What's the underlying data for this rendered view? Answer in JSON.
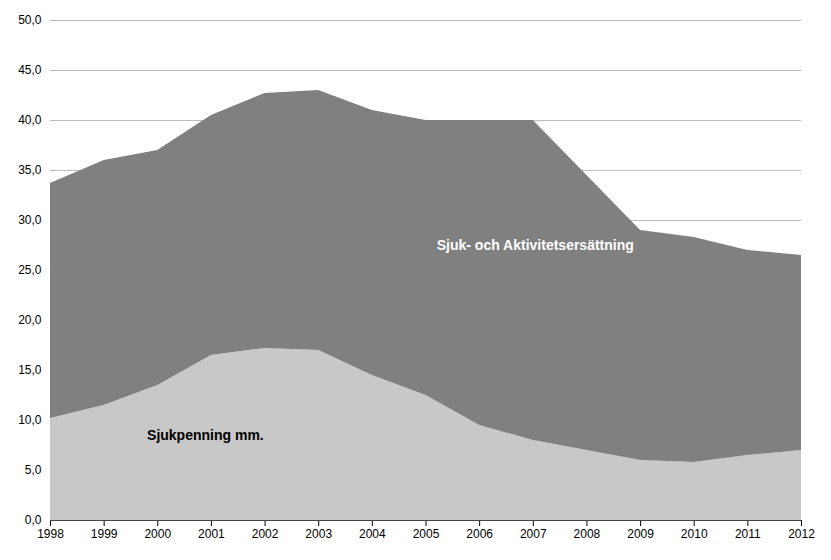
{
  "chart_data": {
    "type": "area",
    "stacked": true,
    "x": [
      1998,
      1999,
      2000,
      2001,
      2002,
      2003,
      2004,
      2005,
      2006,
      2007,
      2008,
      2009,
      2010,
      2011,
      2012
    ],
    "series": [
      {
        "name": "Sjukpenning mm.",
        "color": "#c8c8c8",
        "values": [
          10.2,
          11.5,
          13.5,
          16.5,
          17.2,
          17.0,
          14.5,
          12.5,
          9.5,
          8.0,
          7.0,
          6.0,
          5.8,
          6.5,
          7.0
        ]
      },
      {
        "name": "Sjuk- och Aktivitetsersättning",
        "color": "#808080",
        "values": [
          23.5,
          24.5,
          23.5,
          24.0,
          25.5,
          26.0,
          26.5,
          27.5,
          30.5,
          32.0,
          27.5,
          23.0,
          22.5,
          20.5,
          19.5
        ]
      }
    ],
    "xlim": [
      1998,
      2012
    ],
    "xticks": [
      1998,
      1999,
      2000,
      2001,
      2002,
      2003,
      2004,
      2005,
      2006,
      2007,
      2008,
      2009,
      2010,
      2011,
      2012
    ],
    "ylim": [
      0,
      50
    ],
    "yticks": [
      {
        "value": 0,
        "label": "0,0"
      },
      {
        "value": 5,
        "label": "5,0"
      },
      {
        "value": 10,
        "label": "10,0"
      },
      {
        "value": 15,
        "label": "15,0"
      },
      {
        "value": 20,
        "label": "20,0"
      },
      {
        "value": 25,
        "label": "25,0"
      },
      {
        "value": 30,
        "label": "30,0"
      },
      {
        "value": 35,
        "label": "35,0"
      },
      {
        "value": 40,
        "label": "40,0"
      },
      {
        "value": 45,
        "label": "45,0"
      },
      {
        "value": 50,
        "label": "50,0"
      }
    ],
    "grid": true
  }
}
